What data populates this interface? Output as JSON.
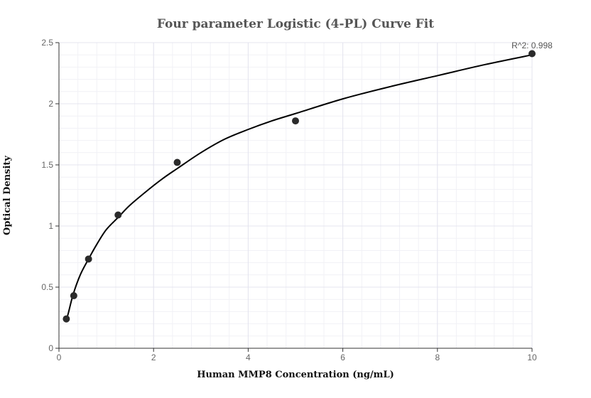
{
  "chart_data": {
    "type": "scatter",
    "title": "Four parameter Logistic (4-PL) Curve Fit",
    "xlabel": "Human MMP8 Concentration (ng/mL)",
    "ylabel": "Optical Density",
    "xlim": [
      0,
      10
    ],
    "ylim": [
      0,
      2.5
    ],
    "x_ticks": [
      "0",
      "2",
      "4",
      "6",
      "8",
      "10"
    ],
    "y_ticks": [
      "0",
      "0.5",
      "1",
      "1.5",
      "2",
      "2.5"
    ],
    "x_tick_values": [
      0,
      2,
      4,
      6,
      8,
      10
    ],
    "y_tick_values": [
      0,
      0.5,
      1,
      1.5,
      2,
      2.5
    ],
    "grid": true,
    "annotation": "R^2: 0.998",
    "series": [
      {
        "name": "",
        "x": [
          0.156,
          0.313,
          0.625,
          1.25,
          2.5,
          5,
          10
        ],
        "y": [
          0.24,
          0.43,
          0.73,
          1.09,
          1.52,
          1.86,
          2.41
        ]
      }
    ],
    "fit_curve": {
      "x": [
        0.156,
        0.2,
        0.3,
        0.45,
        0.625,
        0.8,
        1.0,
        1.25,
        1.5,
        1.9,
        2.2,
        2.5,
        3.0,
        3.5,
        4.0,
        4.5,
        5.0,
        6.0,
        7.0,
        8.0,
        9.0,
        10.0
      ],
      "y": [
        0.23,
        0.29,
        0.44,
        0.6,
        0.73,
        0.85,
        0.97,
        1.07,
        1.17,
        1.3,
        1.39,
        1.47,
        1.6,
        1.71,
        1.79,
        1.86,
        1.92,
        2.04,
        2.14,
        2.23,
        2.32,
        2.4
      ]
    }
  }
}
